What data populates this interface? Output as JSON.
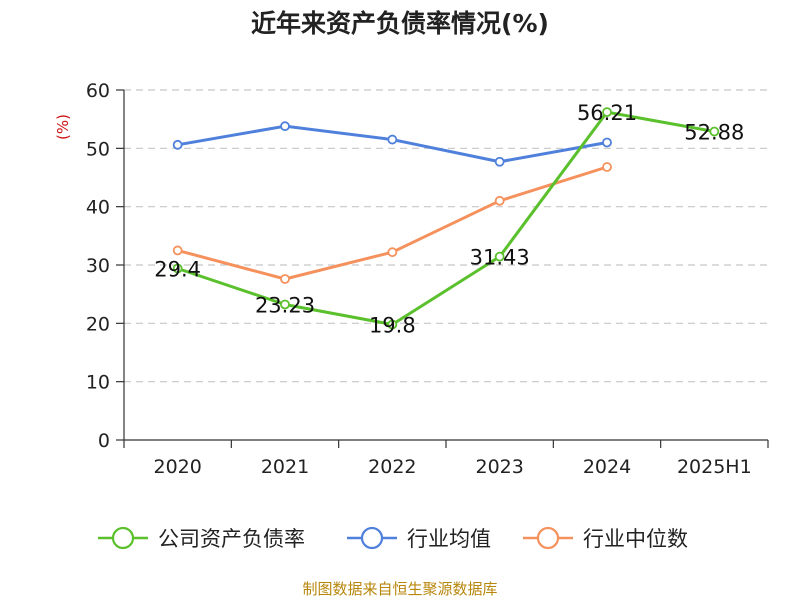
{
  "chart_data": {
    "type": "line",
    "title": "近年来资产负债率情况(%)",
    "yunit": "(%)",
    "categories": [
      "2020",
      "2021",
      "2022",
      "2023",
      "2024",
      "2025H1"
    ],
    "ylim": [
      0,
      60
    ],
    "yticks": [
      0,
      10,
      20,
      30,
      40,
      50,
      60
    ],
    "grid": true,
    "legend_position": "bottom",
    "series": [
      {
        "name": "公司资产负债率",
        "color": "#5ac02c",
        "values": [
          29.4,
          23.23,
          19.8,
          31.43,
          56.21,
          52.88
        ],
        "labels": [
          "29.4",
          "23.23",
          "19.8",
          "31.43",
          "56.21",
          "52.88"
        ]
      },
      {
        "name": "行业均值",
        "color": "#4f80db",
        "values": [
          50.6,
          53.8,
          51.5,
          47.7,
          51.0,
          null
        ]
      },
      {
        "name": "行业中位数",
        "color": "#f5915c",
        "values": [
          32.5,
          27.6,
          32.2,
          41.0,
          46.8,
          null
        ]
      }
    ]
  },
  "source": "制图数据来自恒生聚源数据库"
}
